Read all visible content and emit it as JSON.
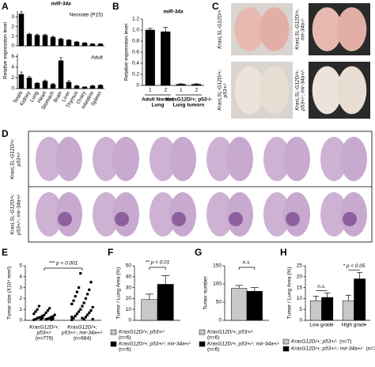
{
  "panel_letters": [
    "A",
    "B",
    "C",
    "D",
    "E",
    "F",
    "G",
    "H"
  ],
  "photos": {
    "labels": [
      [
        "KrasLSL-G12D/+"
      ],
      [
        "KrasLSL-G12D/+;",
        "mir-34a-/-"
      ],
      [
        "KrasLSL-G12D/+;",
        "p53+/-"
      ],
      [
        "KrasLSL-G12D/+;",
        "p53+/-; mir-34a+/-"
      ]
    ]
  },
  "histology": {
    "row_labels": [
      [
        "KrasLSL-G12D/+;",
        "p53+/-"
      ],
      [
        "KrasLSL-G12D/+;",
        "p53+/-; mir-34a+/-"
      ]
    ]
  },
  "chart_data": [
    {
      "type": "bar",
      "title": "miR-34a",
      "subtitle": "Neonate (P15)",
      "ylabel": "Relative expression level",
      "categories": [
        null,
        null,
        null,
        null,
        null,
        null,
        null,
        null,
        null,
        null,
        null
      ],
      "series": [
        {
          "color": "#000000",
          "values": [
            3.3,
            1.2,
            1.1,
            1.1,
            0.9,
            0.7,
            0.6,
            0.4,
            0.3,
            0.2,
            0.2
          ],
          "errors": [
            0.25,
            0.1,
            0.1,
            0.1,
            0.1,
            0.08,
            0.05,
            0.05,
            0.04,
            0.03,
            0.03
          ]
        }
      ],
      "ylim": [
        0,
        3.6
      ],
      "yticks": [
        0,
        1,
        2,
        3
      ]
    },
    {
      "type": "bar",
      "subtitle": "Adult",
      "categories": [
        "Testis",
        "Kidney",
        "Lung",
        "Heart",
        "Stomach",
        "Brain",
        "Liver",
        "Thymus",
        "Ovary",
        "Intestine",
        "Spleen"
      ],
      "series": [
        {
          "color": "#000000",
          "values": [
            2.6,
            2.0,
            1.0,
            1.4,
            0.8,
            5.2,
            1.2,
            0.5,
            0.3,
            0.5,
            0.6
          ],
          "errors": [
            0.5,
            0.3,
            0.15,
            0.2,
            0.15,
            0.6,
            0.3,
            0.1,
            0.05,
            0.1,
            0.1
          ]
        }
      ],
      "ylim": [
        0,
        6.5
      ],
      "yticks": [
        0,
        2,
        4,
        6
      ]
    },
    {
      "type": "bar",
      "title": "miR-34a",
      "ylabel": "Relative expression level",
      "categories": [
        "1",
        "2",
        "1",
        "2"
      ],
      "groups": [
        [
          "Adult Normal",
          "Lung"
        ],
        [
          "KrasG12D/+; p53-/-",
          "Lung tumors"
        ]
      ],
      "series": [
        {
          "color": "#000000",
          "values": [
            1.0,
            0.97,
            0.02,
            0.02
          ],
          "errors": [
            0.03,
            0.08,
            0.01,
            0.01
          ]
        }
      ],
      "ylim": [
        0,
        1.2
      ],
      "yticks": [
        0,
        0.2,
        0.4,
        0.6,
        0.8,
        {
          "value": 1,
          "label": "1.0"
        },
        1.2
      ]
    },
    {
      "type": "strip",
      "ylabel": "Tumor size (X10⁴ mm²)",
      "annotation": "*** p < 0.001",
      "groups": [
        [
          "KrasG12D/+;",
          "p53+/-",
          "(n=779)"
        ],
        [
          "KrasG12D/+;",
          "p53+/-; mir-34a+/-",
          "(n=684)"
        ]
      ],
      "series": [
        {
          "marker": "circle",
          "color": "#000000",
          "values": [
            0.05,
            0.1,
            0.1,
            0.15,
            0.2,
            0.2,
            0.25,
            0.3,
            0.3,
            0.35,
            0.4,
            0.5,
            0.5,
            0.6,
            0.7,
            0.8,
            0.9,
            1.0,
            1.1,
            1.3,
            0.05,
            0.1,
            0.15,
            0.2
          ]
        },
        {
          "marker": "square",
          "color": "#000000",
          "values": [
            0.05,
            0.1,
            0.2,
            0.3,
            0.4,
            0.5,
            0.6,
            0.7,
            0.8,
            0.9,
            1.0,
            1.2,
            1.3,
            1.5,
            1.6,
            1.8,
            2.0,
            2.2,
            2.4,
            2.6,
            2.8,
            3.0,
            3.5,
            4.3,
            0.1,
            0.2,
            0.3
          ]
        }
      ],
      "ylim": [
        0,
        5
      ],
      "yticks": [
        0,
        1,
        2,
        3,
        4,
        5
      ]
    },
    {
      "type": "bar",
      "ylabel": "Tumor / Lung Area (%)",
      "annotation": "** p < 0.01",
      "categories": [
        null
      ],
      "series": [
        {
          "name": "KrasG12D/+; p53+/-",
          "n": "(n=6)",
          "color": "#c8c8c8",
          "values": [
            19
          ],
          "errors": [
            5
          ]
        },
        {
          "name": "KrasG12D/+; p53+/-; mir-34a+/-",
          "n": "(n=6)",
          "color": "#000000",
          "values": [
            33
          ],
          "errors": [
            8
          ]
        }
      ],
      "ylim": [
        0,
        50
      ],
      "yticks": [
        0,
        10,
        20,
        30,
        40,
        50
      ]
    },
    {
      "type": "bar",
      "ylabel": "Tumor number",
      "annotation": "n.s.",
      "categories": [
        null
      ],
      "series": [
        {
          "name": "KrasG12D/+; p53+/-",
          "n": "(n=6)",
          "color": "#c8c8c8",
          "values": [
            88
          ],
          "errors": [
            8
          ]
        },
        {
          "name": "KrasG12D/+; p53+/-; mir-34a+/-",
          "n": "(n=6)",
          "color": "#000000",
          "values": [
            80
          ],
          "errors": [
            10
          ]
        }
      ],
      "ylim": [
        0,
        150
      ],
      "yticks": [
        0,
        50,
        100,
        150
      ]
    },
    {
      "type": "bar",
      "ylabel": "Tumor / Lung Area (%)",
      "annotations": [
        "n.s.",
        "* p < 0.05"
      ],
      "categories": [
        "Low grade",
        "High grade"
      ],
      "series": [
        {
          "name": "KrasG12D/+; p53+/-",
          "n": "(n=7)",
          "color": "#c8c8c8",
          "values": [
            9,
            9
          ],
          "errors": [
            2,
            2.5
          ]
        },
        {
          "name": "KrasG12D/+; p53+/-; mir-34a+/-",
          "n": "(n=7)",
          "color": "#000000",
          "values": [
            10.5,
            19
          ],
          "errors": [
            2,
            3
          ]
        }
      ],
      "ylim": [
        0,
        25
      ],
      "yticks": [
        0,
        5,
        10,
        15,
        20,
        25
      ]
    }
  ]
}
